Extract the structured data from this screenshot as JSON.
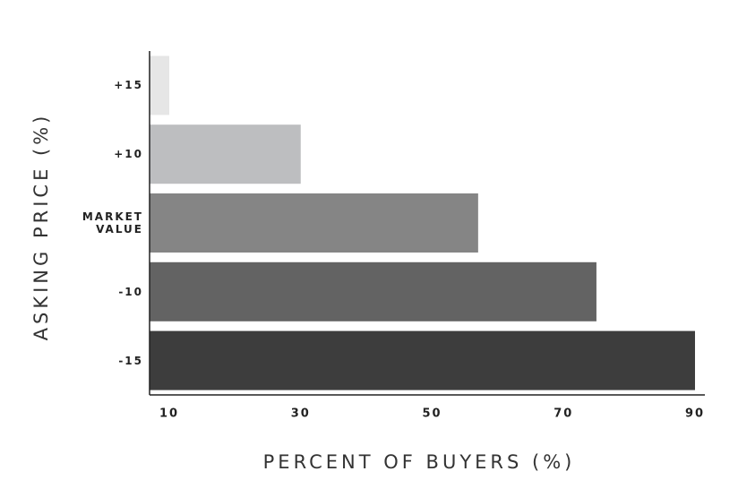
{
  "chart_data": {
    "type": "hbar",
    "categories": [
      "+15",
      "+10",
      "MARKET VALUE",
      "-10",
      "-15"
    ],
    "values": [
      10,
      30,
      57,
      75,
      90
    ],
    "colors": [
      "#e6e6e6",
      "#bdbec0",
      "#858585",
      "#636363",
      "#3d3d3d"
    ],
    "xlabel": "PERCENT OF BUYERS (%)",
    "ylabel": "ASKING PRICE (%)",
    "xlim": [
      7,
      91.5
    ],
    "xticks": [
      10,
      30,
      50,
      70,
      90
    ],
    "grid": false
  }
}
